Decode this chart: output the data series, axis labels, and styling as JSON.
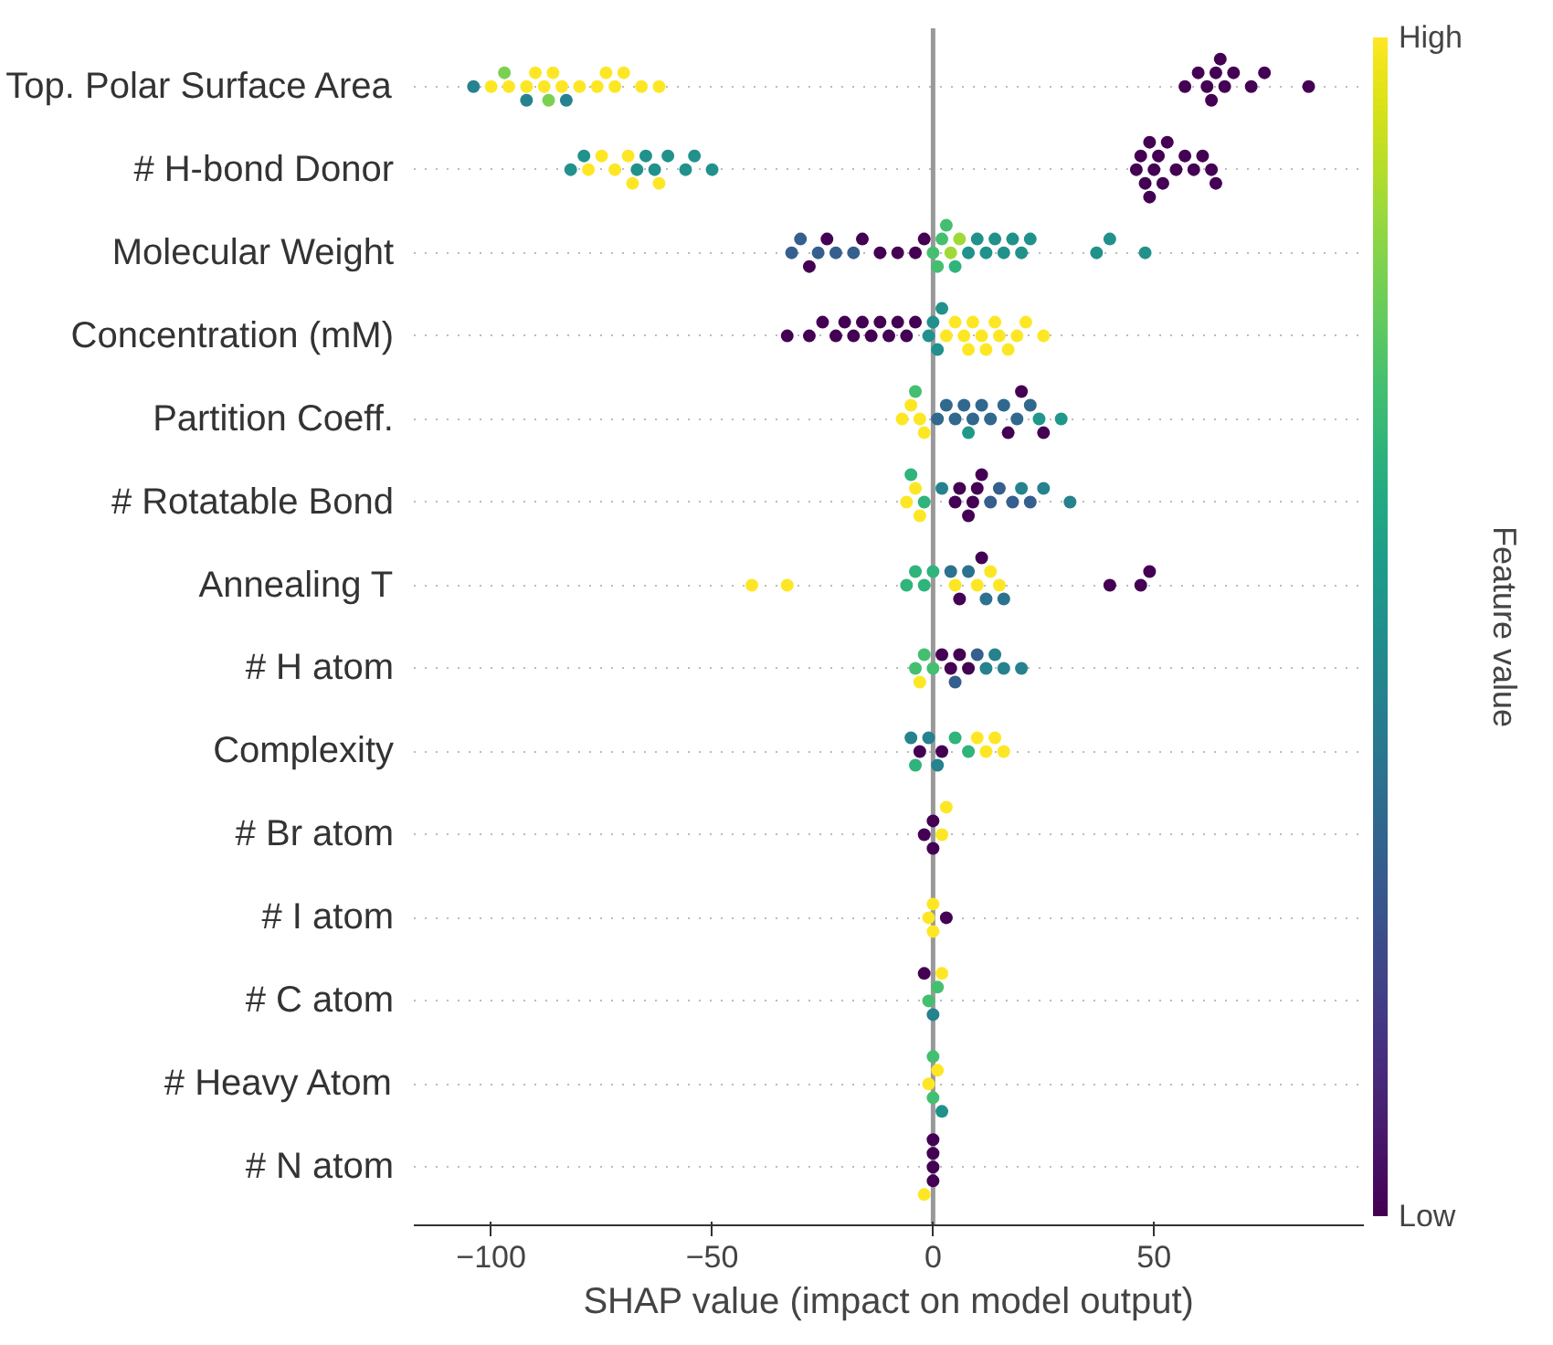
{
  "chart_data": {
    "type": "scatter",
    "orientation": "horizontal",
    "xlabel": "SHAP value (impact on model output)",
    "clabel": "Feature value",
    "categories": [
      "Top. Polar Surface Area",
      "# H-bond Donor",
      "Molecular Weight",
      "Concentration (mM)",
      "Partition Coeff.",
      "# Rotatable Bond",
      "Annealing T",
      "# H atom",
      "Complexity",
      "# Br atom",
      "# I atom",
      "# C atom",
      "# Heavy Atom",
      "# N atom"
    ],
    "xlim": [
      -117.5,
      97.5
    ],
    "xticks": [
      {
        "value": -100,
        "label": "−100"
      },
      {
        "value": -50,
        "label": "−50"
      },
      0,
      50
    ],
    "clim": [
      0,
      1
    ],
    "cticks": [
      {
        "value": 0,
        "label": "Low"
      },
      {
        "value": 1,
        "label": "High"
      }
    ],
    "grid": "y",
    "marker": "circle",
    "ref_lines": [
      {
        "axis": "x",
        "value": 0,
        "color": "#999999"
      }
    ],
    "series": [
      {
        "values": [
          -100,
          -82,
          -32,
          -33,
          -7,
          -6,
          -41,
          -4,
          -3,
          -2,
          -1,
          -1,
          -1,
          0
        ],
        "colors": [
          "#fde725",
          "#21918c",
          "#355f8d",
          "#440154",
          "#fde725",
          "#fde725",
          "#fde725",
          "#44bf70",
          "#440154",
          "#440154",
          "#fde725",
          "#44bf70",
          "#fde725",
          "#440154"
        ]
      },
      {
        "values": [
          -96,
          -79,
          -30,
          -28,
          -5,
          -4,
          -33,
          -2,
          2,
          0,
          0,
          1,
          1,
          0
        ],
        "colors": [
          "#fde725",
          "#21918c",
          "#355f8d",
          "#440154",
          "#fde725",
          "#fde725",
          "#fde725",
          "#44bf70",
          "#440154",
          "#440154",
          "#fde725",
          "#44bf70",
          "#fde725",
          "#440154"
        ]
      },
      {
        "values": [
          -92,
          -67,
          -26,
          -25,
          -3,
          -3,
          5,
          0,
          -5,
          0,
          0,
          0,
          0,
          0
        ],
        "colors": [
          "#fde725",
          "#21918c",
          "#355f8d",
          "#440154",
          "#fde725",
          "#fde725",
          "#fde725",
          "#44bf70",
          "#26828e",
          "#440154",
          "#fde725",
          "#26828e",
          "#44bf70",
          "#440154"
        ]
      },
      {
        "values": [
          -90,
          -65,
          -22,
          -22,
          -2,
          -5,
          10,
          -3,
          -1,
          2,
          3,
          2,
          0,
          0
        ],
        "colors": [
          "#fde725",
          "#21918c",
          "#355f8d",
          "#440154",
          "#fde725",
          "#2fb47c",
          "#fde725",
          "#fde725",
          "#26828e",
          "#fde725",
          "#440154",
          "#fde725",
          "#44bf70",
          "#440154"
        ]
      },
      {
        "values": [
          -88,
          -63,
          -18,
          -20,
          -4,
          -2,
          13,
          2,
          1,
          3,
          null,
          -2,
          2,
          -2
        ],
        "colors": [
          "#fde725",
          "#21918c",
          "#355f8d",
          "#440154",
          "#44bf70",
          "#2fb47c",
          "#fde725",
          "#440154",
          "#26828e",
          "#fde725",
          null,
          "#440154",
          "#21918c",
          "#fde725"
        ]
      },
      {
        "values": [
          -86,
          -60,
          -28,
          -18,
          1,
          5,
          15,
          4,
          -4,
          null,
          null,
          null,
          null,
          null
        ],
        "colors": [
          "#fde725",
          "#21918c",
          "#440154",
          "#440154",
          "#31688e",
          "#440154",
          "#fde725",
          "#440154",
          "#2fb47c",
          null,
          null,
          null,
          null,
          null
        ]
      },
      {
        "values": [
          -84,
          -56,
          -24,
          -16,
          3,
          6,
          -6,
          6,
          5,
          null,
          null,
          null,
          null,
          null
        ],
        "colors": [
          "#fde725",
          "#21918c",
          "#440154",
          "#440154",
          "#31688e",
          "#440154",
          "#2fb47c",
          "#440154",
          "#2fb47c",
          null,
          null,
          null,
          null,
          null
        ]
      },
      {
        "values": [
          -80,
          -54,
          -16,
          -14,
          5,
          8,
          -4,
          8,
          8,
          null,
          null,
          null,
          null,
          null
        ],
        "colors": [
          "#fde725",
          "#21918c",
          "#440154",
          "#440154",
          "#31688e",
          "#440154",
          "#2fb47c",
          "#440154",
          "#2fb47c",
          null,
          null,
          null,
          null,
          null
        ]
      },
      {
        "values": [
          -76,
          -50,
          -12,
          -12,
          7,
          9,
          -2,
          5,
          10,
          null,
          null,
          null,
          null,
          null
        ],
        "colors": [
          "#fde725",
          "#21918c",
          "#440154",
          "#440154",
          "#31688e",
          "#440154",
          "#2fb47c",
          "#355f8d",
          "#fde725",
          null,
          null,
          null,
          null,
          null
        ]
      },
      {
        "values": [
          -74,
          -78,
          -8,
          -10,
          9,
          10,
          0,
          10,
          12,
          null,
          null,
          null,
          null,
          null
        ],
        "colors": [
          "#fde725",
          "#fde725",
          "#440154",
          "#440154",
          "#31688e",
          "#440154",
          "#2fb47c",
          "#355f8d",
          "#fde725",
          null,
          null,
          null,
          null,
          null
        ]
      },
      {
        "values": [
          -72,
          -75,
          -4,
          -8,
          11,
          11,
          4,
          12,
          14,
          null,
          null,
          null,
          null,
          null
        ],
        "colors": [
          "#fde725",
          "#fde725",
          "#440154",
          "#440154",
          "#31688e",
          "#440154",
          "#2c728e",
          "#26828e",
          "#fde725",
          null,
          null,
          null,
          null,
          null
        ]
      },
      {
        "values": [
          -70,
          -72,
          -2,
          -6,
          13,
          13,
          8,
          14,
          16,
          null,
          null,
          null,
          null,
          null
        ],
        "colors": [
          "#fde725",
          "#fde725",
          "#440154",
          "#440154",
          "#31688e",
          "#355f8d",
          "#2c728e",
          "#26828e",
          "#fde725",
          null,
          null,
          null,
          null,
          null
        ]
      },
      {
        "values": [
          -66,
          -69,
          0,
          -4,
          16,
          15,
          12,
          16,
          null,
          null,
          null,
          null,
          null,
          null
        ],
        "colors": [
          "#fde725",
          "#fde725",
          "#44bf70",
          "#440154",
          "#31688e",
          "#355f8d",
          "#2c728e",
          "#26828e",
          null,
          null,
          null,
          null,
          null,
          null
        ]
      },
      {
        "values": [
          -62,
          -68,
          1,
          -1,
          19,
          18,
          16,
          20,
          null,
          null,
          null,
          null,
          null,
          null
        ],
        "colors": [
          "#fde725",
          "#fde725",
          "#44bf70",
          "#21918c",
          "#31688e",
          "#355f8d",
          "#2c728e",
          "#26828e",
          null,
          null,
          null,
          null,
          null,
          null
        ]
      },
      {
        "values": [
          -104,
          -62,
          2,
          0,
          22,
          22,
          6,
          null,
          null,
          null,
          null,
          null,
          null,
          null
        ],
        "colors": [
          "#26828e",
          "#fde725",
          "#44bf70",
          "#21918c",
          "#31688e",
          "#355f8d",
          "#440154",
          null,
          null,
          null,
          null,
          null,
          null,
          null
        ]
      },
      {
        "values": [
          -92,
          46,
          3,
          1,
          8,
          2,
          11,
          null,
          null,
          null,
          null,
          null,
          null,
          null
        ],
        "colors": [
          "#26828e",
          "#440154",
          "#44bf70",
          "#21918c",
          "#1f988b",
          "#26828e",
          "#440154",
          null,
          null,
          null,
          null,
          null,
          null,
          null
        ]
      },
      {
        "values": [
          -83,
          47,
          4,
          2,
          24,
          20,
          40,
          null,
          null,
          null,
          null,
          null,
          null,
          null
        ],
        "colors": [
          "#26828e",
          "#440154",
          "#a0da39",
          "#21918c",
          "#1f988b",
          "#26828e",
          "#440154",
          null,
          null,
          null,
          null,
          null,
          null,
          null
        ]
      },
      {
        "values": [
          -97,
          48,
          6,
          3,
          29,
          25,
          47,
          null,
          null,
          null,
          null,
          null,
          null,
          null
        ],
        "colors": [
          "#7ad151",
          "#440154",
          "#a0da39",
          "#fde725",
          "#1f988b",
          "#26828e",
          "#440154",
          null,
          null,
          null,
          null,
          null,
          null,
          null
        ]
      },
      {
        "values": [
          -87,
          49,
          8,
          5,
          17,
          31,
          49,
          null,
          null,
          null,
          null,
          null,
          null,
          null
        ],
        "colors": [
          "#7ad151",
          "#440154",
          "#21918c",
          "#fde725",
          "#440154",
          "#26828e",
          "#440154",
          null,
          null,
          null,
          null,
          null,
          null,
          null
        ]
      },
      {
        "values": [
          57,
          49,
          10,
          7,
          20,
          null,
          null,
          null,
          null,
          null,
          null,
          null,
          null,
          null
        ],
        "colors": [
          "#440154",
          "#440154",
          "#21918c",
          "#fde725",
          "#440154",
          null,
          null,
          null,
          null,
          null,
          null,
          null,
          null,
          null
        ]
      },
      {
        "values": [
          60,
          50,
          12,
          8,
          25,
          null,
          null,
          null,
          null,
          null,
          null,
          null,
          null,
          null
        ],
        "colors": [
          "#440154",
          "#440154",
          "#21918c",
          "#fde725",
          "#440154",
          null,
          null,
          null,
          null,
          null,
          null,
          null,
          null,
          null
        ]
      },
      {
        "values": [
          62,
          51,
          14,
          9,
          null,
          null,
          null,
          null,
          null,
          null,
          null,
          null,
          null,
          null
        ],
        "colors": [
          "#440154",
          "#440154",
          "#21918c",
          "#fde725",
          null,
          null,
          null,
          null,
          null,
          null,
          null,
          null,
          null,
          null
        ]
      },
      {
        "values": [
          63,
          52,
          16,
          11,
          null,
          null,
          null,
          null,
          null,
          null,
          null,
          null,
          null,
          null
        ],
        "colors": [
          "#440154",
          "#440154",
          "#21918c",
          "#fde725",
          null,
          null,
          null,
          null,
          null,
          null,
          null,
          null,
          null,
          null
        ]
      },
      {
        "values": [
          64,
          53,
          18,
          12,
          null,
          null,
          null,
          null,
          null,
          null,
          null,
          null,
          null,
          null
        ],
        "colors": [
          "#440154",
          "#440154",
          "#21918c",
          "#fde725",
          null,
          null,
          null,
          null,
          null,
          null,
          null,
          null,
          null,
          null
        ]
      },
      {
        "values": [
          65,
          55,
          20,
          14,
          null,
          null,
          null,
          null,
          null,
          null,
          null,
          null,
          null,
          null
        ],
        "colors": [
          "#440154",
          "#440154",
          "#21918c",
          "#fde725",
          null,
          null,
          null,
          null,
          null,
          null,
          null,
          null,
          null,
          null
        ]
      },
      {
        "values": [
          66,
          57,
          22,
          15,
          null,
          null,
          null,
          null,
          null,
          null,
          null,
          null,
          null,
          null
        ],
        "colors": [
          "#440154",
          "#440154",
          "#21918c",
          "#fde725",
          null,
          null,
          null,
          null,
          null,
          null,
          null,
          null,
          null,
          null
        ]
      },
      {
        "values": [
          68,
          59,
          37,
          17,
          null,
          null,
          null,
          null,
          null,
          null,
          null,
          null,
          null,
          null
        ],
        "colors": [
          "#440154",
          "#440154",
          "#21918c",
          "#fde725",
          null,
          null,
          null,
          null,
          null,
          null,
          null,
          null,
          null,
          null
        ]
      },
      {
        "values": [
          72,
          61,
          40,
          19,
          null,
          null,
          null,
          null,
          null,
          null,
          null,
          null,
          null,
          null
        ],
        "colors": [
          "#440154",
          "#440154",
          "#21918c",
          "#fde725",
          null,
          null,
          null,
          null,
          null,
          null,
          null,
          null,
          null,
          null
        ]
      },
      {
        "values": [
          75,
          63,
          48,
          21,
          null,
          null,
          null,
          null,
          null,
          null,
          null,
          null,
          null,
          null
        ],
        "colors": [
          "#440154",
          "#440154",
          "#21918c",
          "#fde725",
          null,
          null,
          null,
          null,
          null,
          null,
          null,
          null,
          null,
          null
        ]
      },
      {
        "values": [
          85,
          64,
          5,
          25,
          null,
          null,
          null,
          null,
          null,
          null,
          null,
          null,
          null,
          null
        ],
        "colors": [
          "#440154",
          "#440154",
          "#2fb47c",
          "#fde725",
          null,
          null,
          null,
          null,
          null,
          null,
          null,
          null,
          null,
          null
        ]
      }
    ]
  }
}
